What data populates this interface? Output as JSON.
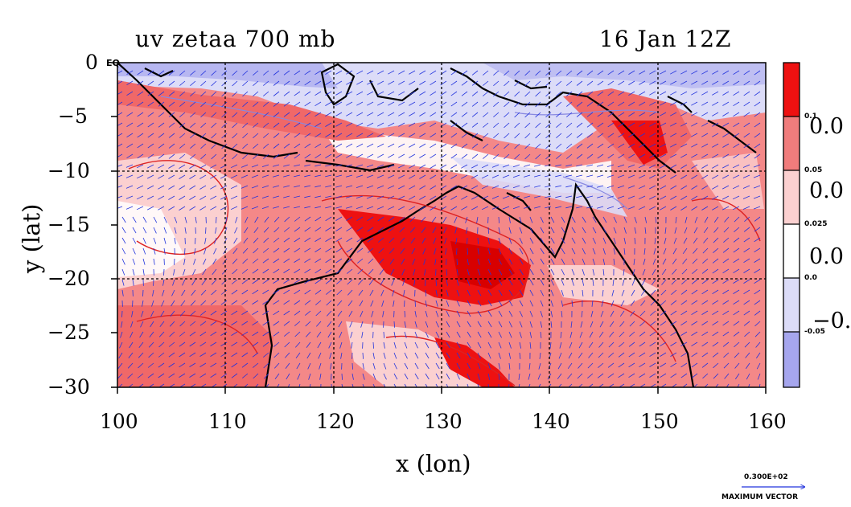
{
  "header": {
    "title_left": "uv zetaa 700 mb",
    "title_right": "16 Jan 12Z"
  },
  "axes": {
    "x_label": "x (lon)",
    "y_label": "y (lat)",
    "x_ticks": [
      "100",
      "110",
      "120",
      "130",
      "140",
      "150",
      "160"
    ],
    "y_ticks": [
      "0",
      "−5",
      "−10",
      "−15",
      "−20",
      "−25",
      "−30"
    ],
    "corner_label": "EQ"
  },
  "colorbar": {
    "levels": [
      "0.1",
      "0.05",
      "0.025",
      "0.0",
      "-0.05"
    ],
    "big_labels": [
      "0.0",
      "0.0",
      "0.0",
      "−0."
    ],
    "colors": [
      "#ee1111",
      "#f07c7c",
      "#fbd0d0",
      "#ffffff",
      "#dcdcf8",
      "#a6a6ee"
    ]
  },
  "vector_key": {
    "value": "0.300E+02",
    "label": "MAXIMUM VECTOR"
  },
  "map": {
    "domain_lon": [
      100,
      160
    ],
    "domain_lat": [
      -30,
      0
    ],
    "colors": {
      "strong_pos": "#ee1111",
      "pos": "#f07c7c",
      "weak_pos": "#fbd0d0",
      "neg": "#dcdcf8",
      "strong_neg": "#a6a6ee",
      "vector": "#2233dd"
    }
  }
}
